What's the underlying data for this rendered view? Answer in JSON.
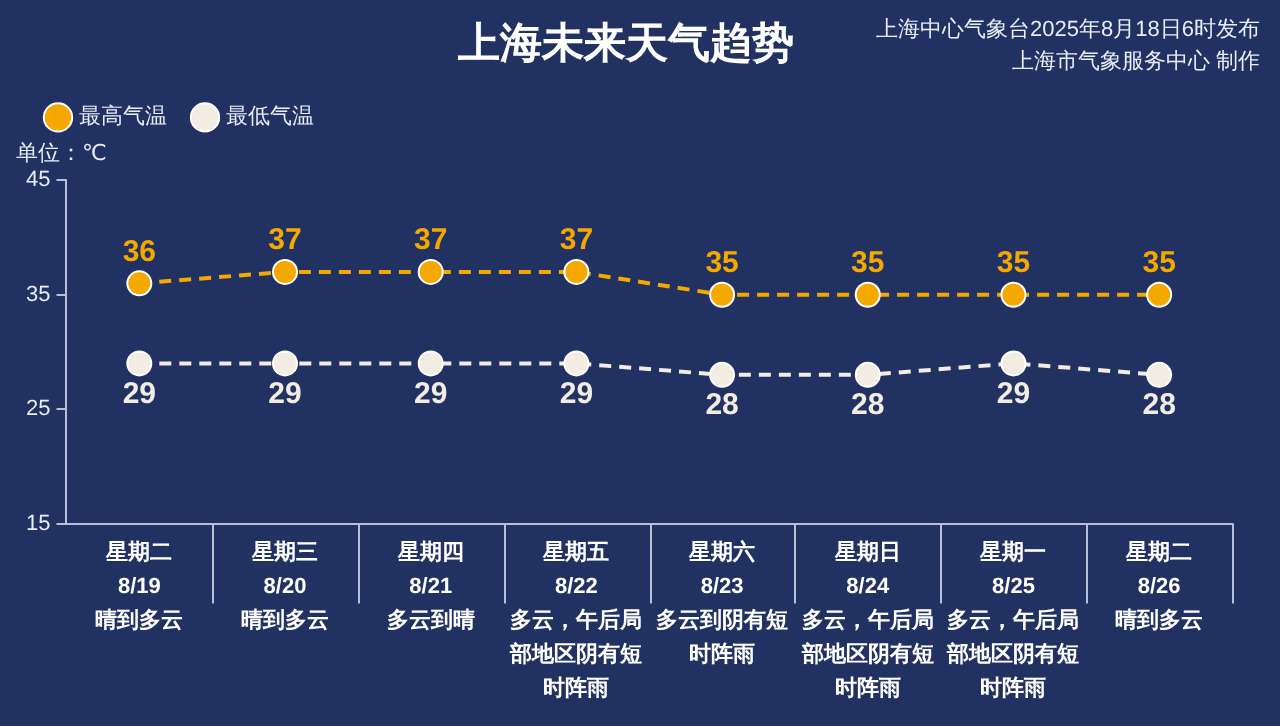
{
  "chart_data": {
    "type": "line",
    "title": "上海未来天气趋势",
    "ylabel": "单位：℃",
    "annotations": [
      "上海中心气象台2025年8月18日6时发布",
      "上海市气象服务中心 制作"
    ],
    "categories": [
      "星期二\n8/19\n晴到多云",
      "星期三\n8/20\n晴到多云",
      "星期四\n8/21\n多云到晴",
      "星期五\n8/22\n多云，午后局部地区阴有短时阵雨",
      "星期六\n8/23\n多云到阴有短时阵雨",
      "星期日\n8/24\n多云，午后局部地区阴有短时阵雨",
      "星期一\n8/25\n多云，午后局部地区阴有短时阵雨",
      "星期二\n8/26\n晴到多云"
    ],
    "series": [
      {
        "name": "最高气温",
        "color": "#f5a800",
        "values": [
          36,
          37,
          37,
          37,
          35,
          35,
          35,
          35
        ]
      },
      {
        "name": "最低气温",
        "color": "#f2ece2",
        "values": [
          29,
          29,
          29,
          29,
          28,
          28,
          29,
          28
        ]
      }
    ],
    "ylim": [
      15,
      45
    ],
    "yticks": [
      15,
      25,
      35,
      45
    ],
    "grid": false,
    "legend": "top left",
    "marker": "circle",
    "line_style": "dashed",
    "data_labels": true
  }
}
